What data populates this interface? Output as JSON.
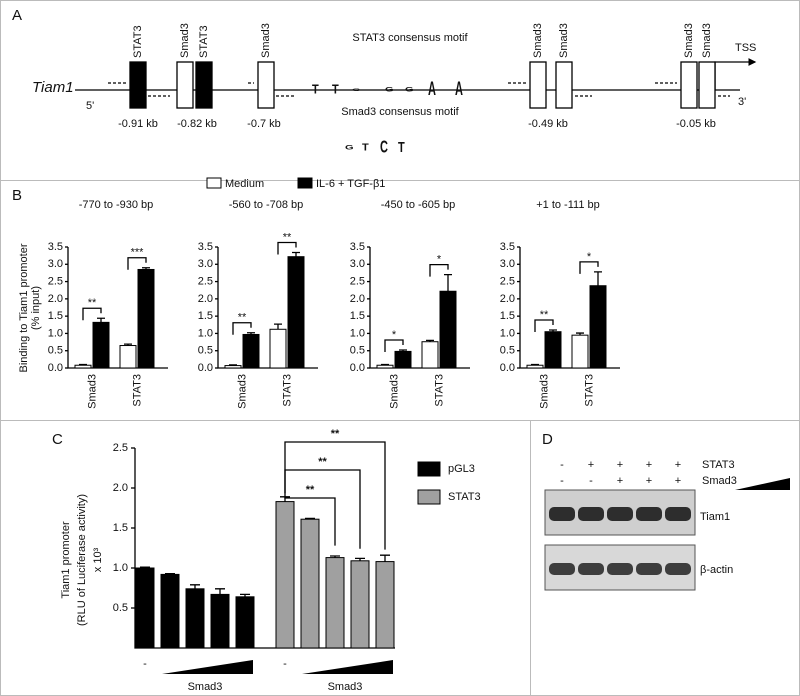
{
  "panel_a": {
    "label": "A",
    "gene": "Tiam1",
    "five_prime": "5'",
    "three_prime": "3'",
    "tss": "TSS",
    "sites": [
      "STAT3",
      "Smad3",
      "STAT3",
      "Smad3",
      "Smad3",
      "Smad3",
      "Smad3",
      "Smad3"
    ],
    "positions": [
      "-0.91 kb",
      "-0.82 kb",
      "-0.7 kb",
      "-0.49 kb",
      "-0.05 kb"
    ],
    "motifs": [
      {
        "title": "STAT3 consensus motif",
        "letters": [
          "T",
          "T",
          "C",
          "G",
          "G",
          "A",
          "A"
        ]
      },
      {
        "title": "Smad3 consensus motif",
        "letters": [
          "G",
          "T",
          "C",
          "T"
        ]
      }
    ]
  },
  "panel_b": {
    "label": "B"
  },
  "panel_c": {
    "label": "C"
  },
  "chart_data": [
    {
      "type": "bar",
      "title": "-770 to -930 bp",
      "y_label": [
        "Binding to Tiam1 promoter",
        "(% input)"
      ],
      "categories": [
        "Smad3",
        "STAT3"
      ],
      "series": [
        {
          "name": "Medium",
          "color": "#ffffff",
          "values": [
            0.08,
            0.65
          ],
          "errors": [
            0.02,
            0.04
          ]
        },
        {
          "name": "IL-6 + TGF-β1",
          "color": "#000000",
          "values": [
            1.32,
            2.85
          ],
          "errors": [
            0.12,
            0.05
          ]
        }
      ],
      "significance": [
        "**",
        "***"
      ],
      "ylim": [
        0,
        3.5
      ],
      "yticks": [
        {
          "value": 0,
          "label": "0.0"
        },
        0.5,
        {
          "value": 1,
          "label": "1.0"
        },
        1.5,
        {
          "value": 2,
          "label": "2.0"
        },
        2.5,
        {
          "value": 3,
          "label": "3.0"
        },
        3.5
      ]
    },
    {
      "type": "bar",
      "title": "-560 to -708 bp",
      "categories": [
        "Smad3",
        "STAT3"
      ],
      "series": [
        {
          "color": "#ffffff",
          "values": [
            0.07,
            1.12
          ],
          "errors": [
            0.02,
            0.15
          ]
        },
        {
          "color": "#000000",
          "values": [
            0.97,
            3.22
          ],
          "errors": [
            0.05,
            0.12
          ]
        }
      ],
      "significance": [
        "**",
        "**"
      ],
      "ylim": [
        0,
        3.5
      ],
      "yticks": [
        {
          "value": 0,
          "label": "0.0"
        },
        0.5,
        {
          "value": 1,
          "label": "1.0"
        },
        1.5,
        {
          "value": 2,
          "label": "2.0"
        },
        2.5,
        {
          "value": 3,
          "label": "3.0"
        },
        3.5
      ]
    },
    {
      "type": "bar",
      "title": "-450 to -605 bp",
      "categories": [
        "Smad3",
        "STAT3"
      ],
      "series": [
        {
          "color": "#ffffff",
          "values": [
            0.08,
            0.76
          ],
          "errors": [
            0.02,
            0.04
          ]
        },
        {
          "color": "#000000",
          "values": [
            0.48,
            2.22
          ],
          "errors": [
            0.04,
            0.48
          ]
        }
      ],
      "significance": [
        "*",
        "*"
      ],
      "ylim": [
        0,
        3.5
      ],
      "yticks": [
        {
          "value": 0,
          "label": "0.0"
        },
        0.5,
        {
          "value": 1,
          "label": "1.0"
        },
        1.5,
        {
          "value": 2,
          "label": "2.0"
        },
        2.5,
        {
          "value": 3,
          "label": "3.0"
        },
        3.5
      ]
    },
    {
      "type": "bar",
      "title": "+1 to -111 bp",
      "categories": [
        "Smad3",
        "STAT3"
      ],
      "series": [
        {
          "color": "#ffffff",
          "values": [
            0.08,
            0.95
          ],
          "errors": [
            0.02,
            0.06
          ]
        },
        {
          "color": "#000000",
          "values": [
            1.05,
            2.38
          ],
          "errors": [
            0.05,
            0.4
          ]
        }
      ],
      "significance": [
        "**",
        "*"
      ],
      "ylim": [
        0,
        3.5
      ],
      "yticks": [
        {
          "value": 0,
          "label": "0.0"
        },
        0.5,
        {
          "value": 1,
          "label": "1.0"
        },
        1.5,
        {
          "value": 2,
          "label": "2.0"
        },
        2.5,
        {
          "value": 3,
          "label": "3.0"
        },
        3.5
      ]
    },
    {
      "type": "grouped-bar",
      "y_label": [
        "Tiam1 promoter",
        "(RLU of Luciferase activity)",
        "x 10³"
      ],
      "categories": [
        "-",
        null,
        null,
        null,
        null
      ],
      "x_label": "Smad3",
      "series": [
        {
          "name": "pGL3",
          "color": "#000000",
          "values": [
            1.0,
            0.92,
            0.74,
            0.67,
            0.64
          ],
          "errors": [
            0.01,
            0.01,
            0.05,
            0.07,
            0.03
          ]
        },
        {
          "name": "STAT3",
          "color": "#a0a0a0",
          "values": [
            1.83,
            1.61,
            1.13,
            1.09,
            1.08
          ],
          "errors": [
            0.06,
            0.01,
            0.02,
            0.03,
            0.08
          ]
        }
      ],
      "comparisons": [
        {
          "label": "**",
          "from": 0,
          "to": 2
        },
        {
          "label": "**",
          "from": 0,
          "to": 3
        },
        {
          "label": "**",
          "from": 0,
          "to": 4
        }
      ],
      "ylim": [
        0,
        2.5
      ],
      "yticks": [
        0.5,
        {
          "value": 1,
          "label": "1.0"
        },
        1.5,
        {
          "value": 2,
          "label": "2.0"
        },
        2.5
      ]
    }
  ],
  "panel_d": {
    "label": "D",
    "rows": [
      {
        "name": "STAT3",
        "signs": [
          "-",
          "+",
          "+",
          "+",
          "+"
        ]
      },
      {
        "name": "Smad3",
        "signs": [
          "-",
          "-",
          "+",
          "+",
          "+"
        ]
      }
    ],
    "bands": [
      "Tiam1",
      "β-actin"
    ]
  }
}
